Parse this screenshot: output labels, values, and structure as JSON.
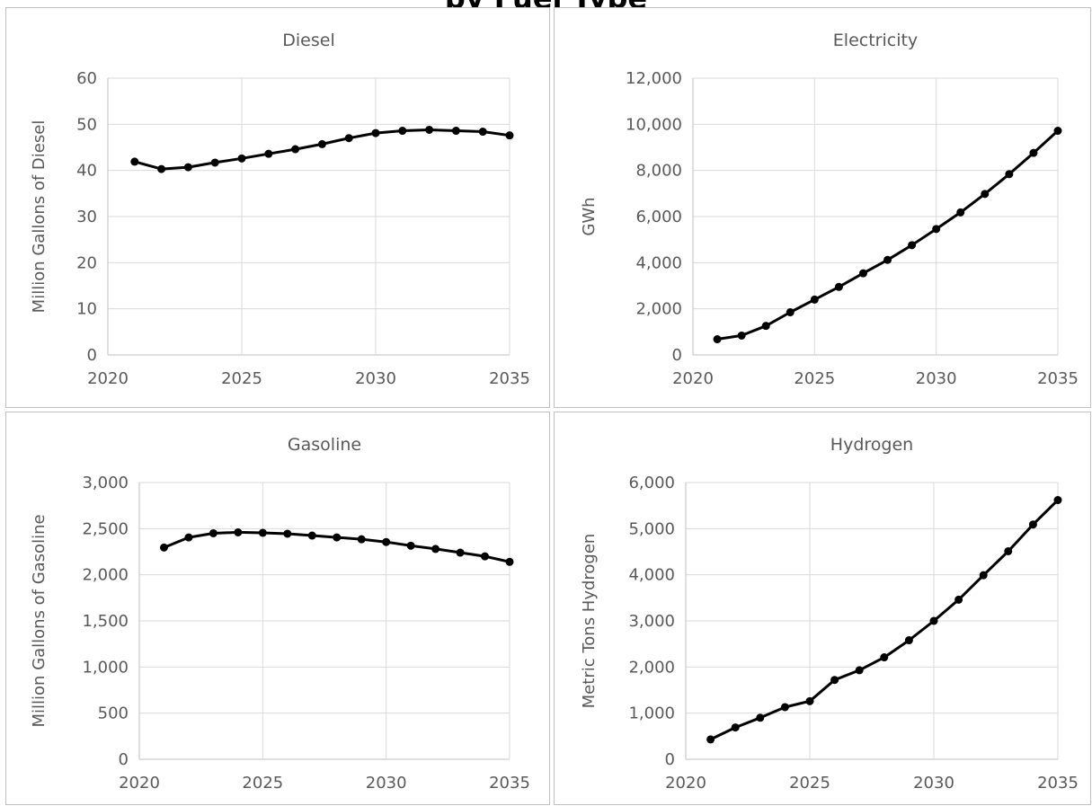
{
  "page_title": "by Fuel Type",
  "chart_data": [
    {
      "type": "line",
      "title": "Diesel",
      "ylabel": "Million Gallons of Diesel",
      "xlim": [
        2020,
        2035
      ],
      "ylim": [
        0,
        60
      ],
      "xticks": [
        2020,
        2025,
        2030,
        2035
      ],
      "yticks": [
        0,
        10,
        20,
        30,
        40,
        50,
        60
      ],
      "yticklabels": [
        "0",
        "10",
        "20",
        "30",
        "40",
        "50",
        "60"
      ],
      "grid": true,
      "x": [
        2021,
        2022,
        2023,
        2024,
        2025,
        2026,
        2027,
        2028,
        2029,
        2030,
        2031,
        2032,
        2033,
        2034,
        2035
      ],
      "series": [
        {
          "values": [
            41.9,
            40.3,
            40.7,
            41.7,
            42.6,
            43.6,
            44.6,
            45.7,
            47.0,
            48.1,
            48.6,
            48.8,
            48.6,
            48.4,
            47.6
          ]
        }
      ]
    },
    {
      "type": "line",
      "title": "Electricity",
      "ylabel": "GWh",
      "xlim": [
        2020,
        2035
      ],
      "ylim": [
        0,
        12000
      ],
      "xticks": [
        2020,
        2025,
        2030,
        2035
      ],
      "yticks": [
        0,
        2000,
        4000,
        6000,
        8000,
        10000,
        12000
      ],
      "yticklabels": [
        "0",
        "2,000",
        "4,000",
        "6,000",
        "8,000",
        "10,000",
        "12,000"
      ],
      "grid": true,
      "x": [
        2021,
        2022,
        2023,
        2024,
        2025,
        2026,
        2027,
        2028,
        2029,
        2030,
        2031,
        2032,
        2033,
        2034,
        2035
      ],
      "series": [
        {
          "values": [
            680,
            840,
            1260,
            1850,
            2400,
            2950,
            3540,
            4120,
            4760,
            5460,
            6180,
            6980,
            7840,
            8760,
            9720
          ]
        }
      ]
    },
    {
      "type": "line",
      "title": "Gasoline",
      "ylabel": "Million Gallons of Gasoline",
      "xlim": [
        2020,
        2035
      ],
      "ylim": [
        0,
        3000
      ],
      "xticks": [
        2020,
        2025,
        2030,
        2035
      ],
      "yticks": [
        0,
        500,
        1000,
        1500,
        2000,
        2500,
        3000
      ],
      "yticklabels": [
        "0",
        "500",
        "1,000",
        "1,500",
        "2,000",
        "2,500",
        "3,000"
      ],
      "grid": true,
      "x": [
        2021,
        2022,
        2023,
        2024,
        2025,
        2026,
        2027,
        2028,
        2029,
        2030,
        2031,
        2032,
        2033,
        2034,
        2035
      ],
      "series": [
        {
          "values": [
            2295,
            2405,
            2450,
            2460,
            2455,
            2445,
            2425,
            2405,
            2385,
            2355,
            2315,
            2280,
            2240,
            2200,
            2140
          ]
        }
      ]
    },
    {
      "type": "line",
      "title": "Hydrogen",
      "ylabel": "Metric Tons Hydrogen",
      "xlim": [
        2020,
        2035
      ],
      "ylim": [
        0,
        6000
      ],
      "xticks": [
        2020,
        2025,
        2030,
        2035
      ],
      "yticks": [
        0,
        1000,
        2000,
        3000,
        4000,
        5000,
        6000
      ],
      "yticklabels": [
        "0",
        "1,000",
        "2,000",
        "3,000",
        "4,000",
        "5,000",
        "6,000"
      ],
      "grid": true,
      "x": [
        2021,
        2022,
        2023,
        2024,
        2025,
        2026,
        2027,
        2028,
        2029,
        2030,
        2031,
        2032,
        2033,
        2034,
        2035
      ],
      "series": [
        {
          "values": [
            430,
            690,
            900,
            1130,
            1260,
            1720,
            1930,
            2210,
            2580,
            3000,
            3460,
            3990,
            4510,
            5090,
            5620
          ]
        }
      ]
    }
  ]
}
